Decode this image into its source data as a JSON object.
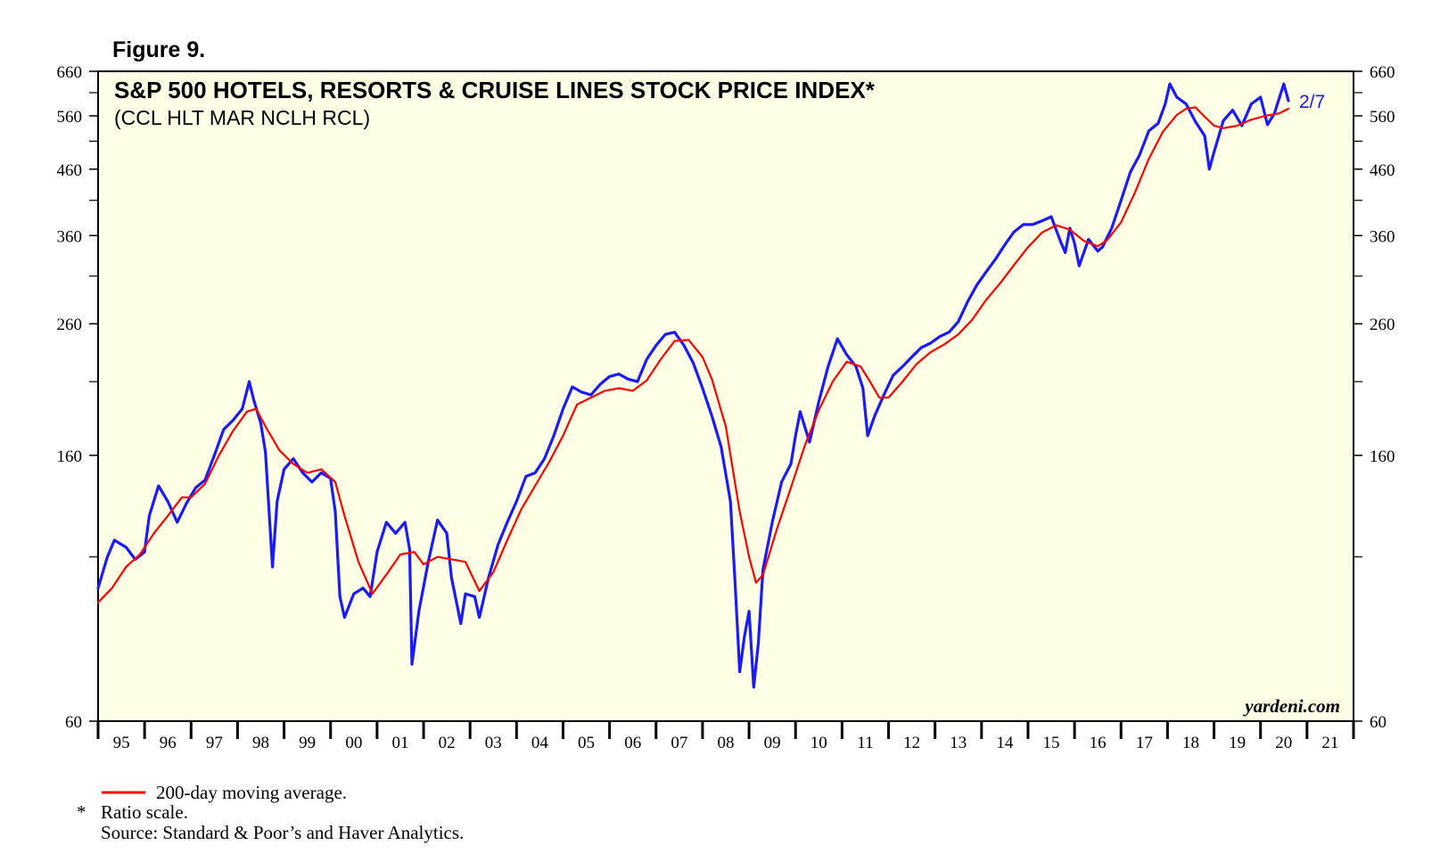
{
  "figure_label": "Figure 9.",
  "chart_data": {
    "type": "line",
    "title": "S&P 500 HOTELS, RESORTS & CRUISE LINES STOCK PRICE INDEX*",
    "subtitle": "(CCL HLT MAR NCLH RCL)",
    "scale": "log",
    "ylim": [
      60,
      660
    ],
    "yticks": [
      60,
      160,
      260,
      360,
      460,
      560,
      660
    ],
    "ytick_labels": [
      "60",
      "160",
      "260",
      "360",
      "460",
      "560",
      "660"
    ],
    "yticks_minor": [
      110,
      210,
      310,
      410,
      510,
      610
    ],
    "xlim": [
      1995,
      2022
    ],
    "x_year_labels": [
      "95",
      "96",
      "97",
      "98",
      "99",
      "00",
      "01",
      "02",
      "03",
      "04",
      "05",
      "06",
      "07",
      "08",
      "09",
      "10",
      "11",
      "12",
      "13",
      "14",
      "15",
      "16",
      "17",
      "18",
      "19",
      "20",
      "21"
    ],
    "end_label": "2/7",
    "watermark": "yardeni.com",
    "series": [
      {
        "name": "S&P 500 Hotels, Resorts & Cruise Lines",
        "color": "#1a1aff",
        "points": [
          [
            1995.0,
            98
          ],
          [
            1995.2,
            110
          ],
          [
            1995.35,
            117
          ],
          [
            1995.6,
            114
          ],
          [
            1995.8,
            109
          ],
          [
            1996.0,
            112
          ],
          [
            1996.1,
            128
          ],
          [
            1996.3,
            143
          ],
          [
            1996.5,
            135
          ],
          [
            1996.7,
            125
          ],
          [
            1996.9,
            134
          ],
          [
            1997.1,
            142
          ],
          [
            1997.3,
            146
          ],
          [
            1997.5,
            160
          ],
          [
            1997.7,
            176
          ],
          [
            1997.9,
            182
          ],
          [
            1998.1,
            190
          ],
          [
            1998.25,
            210
          ],
          [
            1998.35,
            196
          ],
          [
            1998.5,
            180
          ],
          [
            1998.6,
            162
          ],
          [
            1998.75,
            106
          ],
          [
            1998.85,
            135
          ],
          [
            1999.0,
            152
          ],
          [
            1999.2,
            158
          ],
          [
            1999.4,
            150
          ],
          [
            1999.6,
            145
          ],
          [
            1999.8,
            150
          ],
          [
            2000.0,
            147
          ],
          [
            2000.1,
            130
          ],
          [
            2000.2,
            95
          ],
          [
            2000.3,
            88
          ],
          [
            2000.5,
            96
          ],
          [
            2000.7,
            98
          ],
          [
            2000.85,
            95
          ],
          [
            2001.0,
            112
          ],
          [
            2001.2,
            125
          ],
          [
            2001.4,
            120
          ],
          [
            2001.6,
            125
          ],
          [
            2001.7,
            113
          ],
          [
            2001.75,
            74
          ],
          [
            2001.9,
            90
          ],
          [
            2002.1,
            108
          ],
          [
            2002.3,
            126
          ],
          [
            2002.5,
            120
          ],
          [
            2002.6,
            102
          ],
          [
            2002.8,
            86
          ],
          [
            2002.9,
            96
          ],
          [
            2003.1,
            95
          ],
          [
            2003.2,
            88
          ],
          [
            2003.4,
            102
          ],
          [
            2003.6,
            115
          ],
          [
            2003.8,
            125
          ],
          [
            2004.0,
            135
          ],
          [
            2004.2,
            148
          ],
          [
            2004.4,
            150
          ],
          [
            2004.6,
            158
          ],
          [
            2004.8,
            172
          ],
          [
            2005.0,
            190
          ],
          [
            2005.2,
            206
          ],
          [
            2005.4,
            202
          ],
          [
            2005.6,
            200
          ],
          [
            2005.8,
            208
          ],
          [
            2006.0,
            214
          ],
          [
            2006.2,
            216
          ],
          [
            2006.4,
            212
          ],
          [
            2006.6,
            210
          ],
          [
            2006.8,
            228
          ],
          [
            2007.0,
            240
          ],
          [
            2007.2,
            250
          ],
          [
            2007.4,
            252
          ],
          [
            2007.6,
            240
          ],
          [
            2007.8,
            225
          ],
          [
            2008.0,
            205
          ],
          [
            2008.2,
            185
          ],
          [
            2008.4,
            165
          ],
          [
            2008.6,
            135
          ],
          [
            2008.7,
            100
          ],
          [
            2008.8,
            72
          ],
          [
            2008.9,
            82
          ],
          [
            2009.0,
            90
          ],
          [
            2009.1,
            68
          ],
          [
            2009.2,
            80
          ],
          [
            2009.3,
            105
          ],
          [
            2009.5,
            125
          ],
          [
            2009.7,
            145
          ],
          [
            2009.9,
            155
          ],
          [
            2010.0,
            172
          ],
          [
            2010.1,
            188
          ],
          [
            2010.3,
            168
          ],
          [
            2010.5,
            195
          ],
          [
            2010.7,
            222
          ],
          [
            2010.9,
            246
          ],
          [
            2011.1,
            232
          ],
          [
            2011.3,
            222
          ],
          [
            2011.45,
            205
          ],
          [
            2011.55,
            172
          ],
          [
            2011.7,
            185
          ],
          [
            2011.9,
            200
          ],
          [
            2012.1,
            215
          ],
          [
            2012.3,
            222
          ],
          [
            2012.5,
            230
          ],
          [
            2012.7,
            238
          ],
          [
            2012.9,
            242
          ],
          [
            2013.1,
            248
          ],
          [
            2013.3,
            252
          ],
          [
            2013.5,
            262
          ],
          [
            2013.7,
            282
          ],
          [
            2013.9,
            300
          ],
          [
            2014.1,
            315
          ],
          [
            2014.3,
            330
          ],
          [
            2014.5,
            348
          ],
          [
            2014.7,
            365
          ],
          [
            2014.9,
            375
          ],
          [
            2015.1,
            375
          ],
          [
            2015.3,
            380
          ],
          [
            2015.5,
            386
          ],
          [
            2015.7,
            352
          ],
          [
            2015.8,
            338
          ],
          [
            2015.9,
            370
          ],
          [
            2016.0,
            350
          ],
          [
            2016.1,
            322
          ],
          [
            2016.3,
            355
          ],
          [
            2016.5,
            340
          ],
          [
            2016.6,
            345
          ],
          [
            2016.8,
            370
          ],
          [
            2017.0,
            410
          ],
          [
            2017.2,
            455
          ],
          [
            2017.4,
            485
          ],
          [
            2017.6,
            530
          ],
          [
            2017.8,
            545
          ],
          [
            2017.95,
            585
          ],
          [
            2018.05,
            630
          ],
          [
            2018.2,
            600
          ],
          [
            2018.4,
            585
          ],
          [
            2018.6,
            548
          ],
          [
            2018.8,
            520
          ],
          [
            2018.9,
            460
          ],
          [
            2019.0,
            490
          ],
          [
            2019.2,
            550
          ],
          [
            2019.4,
            572
          ],
          [
            2019.6,
            540
          ],
          [
            2019.8,
            585
          ],
          [
            2020.0,
            600
          ],
          [
            2020.15,
            542
          ],
          [
            2020.3,
            565
          ],
          [
            2020.5,
            630
          ],
          [
            2020.6,
            592
          ]
        ]
      },
      {
        "name": "200-day moving average",
        "color": "#ff0000",
        "points": [
          [
            1995.0,
            93
          ],
          [
            1995.3,
            98
          ],
          [
            1995.6,
            106
          ],
          [
            1995.9,
            111
          ],
          [
            1996.2,
            120
          ],
          [
            1996.5,
            128
          ],
          [
            1996.8,
            137
          ],
          [
            1997.0,
            137
          ],
          [
            1997.3,
            144
          ],
          [
            1997.6,
            160
          ],
          [
            1997.9,
            175
          ],
          [
            1998.2,
            188
          ],
          [
            1998.4,
            190
          ],
          [
            1998.6,
            178
          ],
          [
            1998.9,
            163
          ],
          [
            1999.2,
            155
          ],
          [
            1999.5,
            150
          ],
          [
            1999.8,
            152
          ],
          [
            2000.1,
            145
          ],
          [
            2000.3,
            128
          ],
          [
            2000.6,
            108
          ],
          [
            2000.9,
            96
          ],
          [
            2001.2,
            103
          ],
          [
            2001.5,
            111
          ],
          [
            2001.8,
            112
          ],
          [
            2002.0,
            107
          ],
          [
            2002.3,
            110
          ],
          [
            2002.6,
            109
          ],
          [
            2002.9,
            108
          ],
          [
            2003.2,
            97
          ],
          [
            2003.5,
            104
          ],
          [
            2003.8,
            117
          ],
          [
            2004.1,
            131
          ],
          [
            2004.4,
            143
          ],
          [
            2004.7,
            156
          ],
          [
            2005.0,
            172
          ],
          [
            2005.3,
            193
          ],
          [
            2005.6,
            198
          ],
          [
            2005.9,
            203
          ],
          [
            2006.2,
            205
          ],
          [
            2006.5,
            203
          ],
          [
            2006.8,
            211
          ],
          [
            2007.1,
            228
          ],
          [
            2007.4,
            244
          ],
          [
            2007.7,
            245
          ],
          [
            2008.0,
            230
          ],
          [
            2008.2,
            212
          ],
          [
            2008.5,
            178
          ],
          [
            2008.8,
            130
          ],
          [
            2009.0,
            110
          ],
          [
            2009.15,
            100
          ],
          [
            2009.3,
            103
          ],
          [
            2009.6,
            122
          ],
          [
            2009.9,
            142
          ],
          [
            2010.2,
            166
          ],
          [
            2010.5,
            189
          ],
          [
            2010.8,
            210
          ],
          [
            2011.1,
            226
          ],
          [
            2011.4,
            222
          ],
          [
            2011.6,
            210
          ],
          [
            2011.8,
            198
          ],
          [
            2012.0,
            198
          ],
          [
            2012.3,
            210
          ],
          [
            2012.6,
            224
          ],
          [
            2012.9,
            234
          ],
          [
            2013.2,
            241
          ],
          [
            2013.5,
            250
          ],
          [
            2013.8,
            264
          ],
          [
            2014.1,
            284
          ],
          [
            2014.4,
            302
          ],
          [
            2014.7,
            323
          ],
          [
            2015.0,
            345
          ],
          [
            2015.3,
            364
          ],
          [
            2015.6,
            374
          ],
          [
            2015.9,
            368
          ],
          [
            2016.2,
            353
          ],
          [
            2016.5,
            346
          ],
          [
            2016.7,
            354
          ],
          [
            2017.0,
            378
          ],
          [
            2017.3,
            422
          ],
          [
            2017.6,
            478
          ],
          [
            2017.9,
            528
          ],
          [
            2018.2,
            562
          ],
          [
            2018.4,
            575
          ],
          [
            2018.6,
            578
          ],
          [
            2018.8,
            558
          ],
          [
            2019.0,
            540
          ],
          [
            2019.2,
            535
          ],
          [
            2019.5,
            540
          ],
          [
            2019.8,
            552
          ],
          [
            2020.1,
            560
          ],
          [
            2020.4,
            565
          ],
          [
            2020.6,
            575
          ]
        ]
      }
    ]
  },
  "legend": {
    "label": "200-day moving average.",
    "color": "#ff0000"
  },
  "notes": {
    "marker": "*",
    "ratio": "Ratio scale.",
    "source": "Source: Standard & Poor’s and Haver Analytics."
  }
}
